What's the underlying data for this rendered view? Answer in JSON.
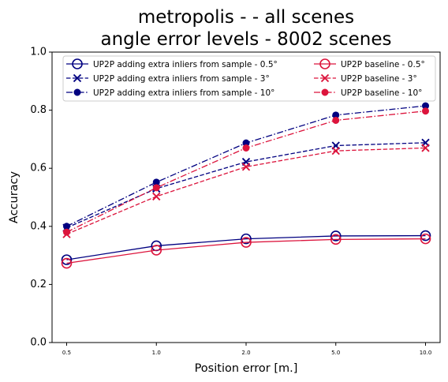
{
  "chart_data": {
    "type": "line",
    "title_line1": "metropolis -  - all scenes",
    "title_line2": "angle error levels - 8002 scenes",
    "xlabel": "Position error [m.]",
    "ylabel": "Accuracy",
    "categories": [
      "0.5",
      "1.0",
      "2.0",
      "5.0",
      "10.0"
    ],
    "ylim": [
      0.0,
      1.0
    ],
    "yticks": [
      "0.0",
      "0.2",
      "0.4",
      "0.6",
      "0.8",
      "1.0"
    ],
    "grid": false,
    "legend_position": "top",
    "series": [
      {
        "name": "UP2P adding extra inliers from sample - 0.5°",
        "color": "#000080",
        "marker": "open-circle",
        "linestyle": "solid",
        "values": [
          0.285,
          0.333,
          0.357,
          0.367,
          0.368
        ]
      },
      {
        "name": "UP2P adding extra inliers from sample - 3°",
        "color": "#000080",
        "marker": "x",
        "linestyle": "dashed",
        "values": [
          0.395,
          0.53,
          0.622,
          0.678,
          0.688
        ]
      },
      {
        "name": "UP2P adding extra inliers from sample - 10°",
        "color": "#000080",
        "marker": "filled-circle",
        "linestyle": "dashdot",
        "values": [
          0.4,
          0.552,
          0.687,
          0.783,
          0.815
        ]
      },
      {
        "name": "UP2P baseline - 0.5°",
        "color": "#DC143C",
        "marker": "open-circle",
        "linestyle": "solid",
        "values": [
          0.273,
          0.318,
          0.345,
          0.355,
          0.357
        ]
      },
      {
        "name": "UP2P baseline - 3°",
        "color": "#DC143C",
        "marker": "x",
        "linestyle": "dashed",
        "values": [
          0.373,
          0.503,
          0.605,
          0.66,
          0.67
        ]
      },
      {
        "name": "UP2P baseline - 10°",
        "color": "#DC143C",
        "marker": "filled-circle",
        "linestyle": "dashdot",
        "values": [
          0.38,
          0.533,
          0.67,
          0.765,
          0.797
        ]
      }
    ]
  }
}
